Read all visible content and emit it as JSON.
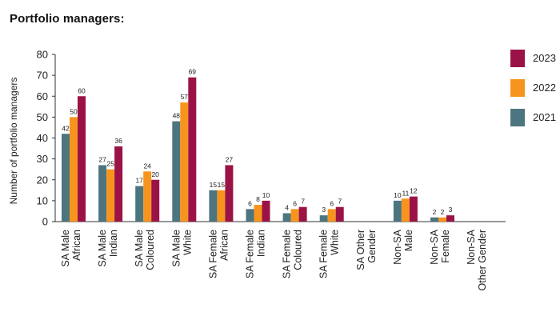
{
  "header": {
    "title": "Portfolio managers:"
  },
  "chart_data": {
    "type": "bar",
    "ylabel": "Number of portfolio managers",
    "xlabel": "",
    "ylim": [
      0,
      80
    ],
    "yticks": [
      0,
      10,
      20,
      30,
      40,
      50,
      60,
      70,
      80
    ],
    "grid": false,
    "legend_position": "right",
    "categories": [
      [
        "SA Male",
        "African"
      ],
      [
        "SA Male",
        "Indian"
      ],
      [
        "SA Male",
        "Coloured"
      ],
      [
        "SA Male",
        "White"
      ],
      [
        "SA Female",
        "African"
      ],
      [
        "SA Female",
        "Indian"
      ],
      [
        "SA Female",
        "Coloured"
      ],
      [
        "SA Female",
        "White"
      ],
      [
        "SA Other",
        "Gender"
      ],
      [
        "Non-SA",
        "Male"
      ],
      [
        "Non-SA",
        "Female"
      ],
      [
        "Non-SA",
        "Other Gender"
      ]
    ],
    "series": [
      {
        "name": "2021",
        "color": "#4c7580",
        "values": [
          42,
          27,
          17,
          48,
          15,
          6,
          4,
          3,
          null,
          10,
          2,
          null
        ]
      },
      {
        "name": "2022",
        "color": "#f7941d",
        "values": [
          50,
          25,
          24,
          57,
          15,
          8,
          6,
          6,
          null,
          11,
          2,
          null
        ]
      },
      {
        "name": "2023",
        "color": "#9b1346",
        "values": [
          60,
          36,
          20,
          69,
          27,
          10,
          7,
          7,
          null,
          12,
          3,
          null
        ]
      }
    ],
    "legend_order": [
      "2023",
      "2022",
      "2021"
    ]
  }
}
